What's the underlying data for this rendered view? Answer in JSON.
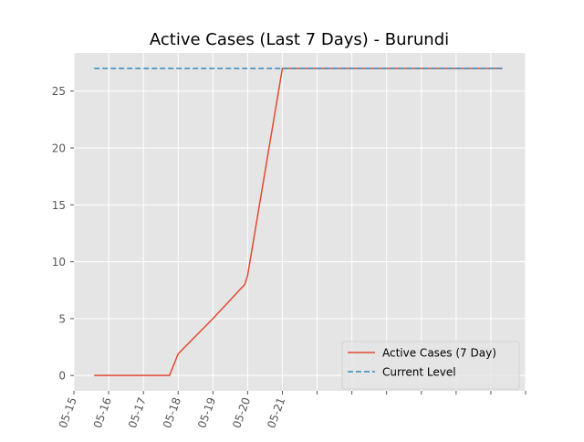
{
  "chart_data": {
    "type": "line",
    "title": "Active Cases (Last 7 Days) - Burundi",
    "xlabel": "",
    "ylabel": "",
    "x_tick_labels": [
      "05-15",
      "05-16",
      "05-17",
      "05-18",
      "05-19",
      "05-20",
      "05-21"
    ],
    "x": [
      "05-15 14:00",
      "05-16 00:00",
      "05-17 00:00",
      "05-17 18:00",
      "05-18 00:00",
      "05-19 00:00",
      "05-19 22:00",
      "05-20 00:00",
      "05-21 00:00",
      "05-22 00:00",
      "05-23 00:00",
      "05-24 00:00",
      "05-25 00:00",
      "05-26 00:00",
      "05-27 00:00",
      "05-27 08:00"
    ],
    "series": [
      {
        "name": "Active Cases (7 Day)",
        "color": "#e24a33",
        "style": "solid",
        "values": [
          0,
          0,
          0,
          0,
          1.9,
          5,
          8,
          8.8,
          27,
          27,
          27,
          27,
          27,
          27,
          27,
          27
        ]
      },
      {
        "name": "Current Level",
        "color": "#348abd",
        "style": "dashed",
        "values": [
          27,
          27,
          27,
          27,
          27,
          27,
          27,
          27,
          27,
          27,
          27,
          27,
          27,
          27,
          27,
          27
        ]
      }
    ],
    "y_ticks": [
      0,
      5,
      10,
      15,
      20,
      25
    ],
    "ylim": [
      -1.35,
      28.35
    ],
    "xlim": [
      "05-15 00:00",
      "05-28 00:00"
    ],
    "grid": true,
    "legend_position": "lower-right",
    "style": "ggplot"
  }
}
